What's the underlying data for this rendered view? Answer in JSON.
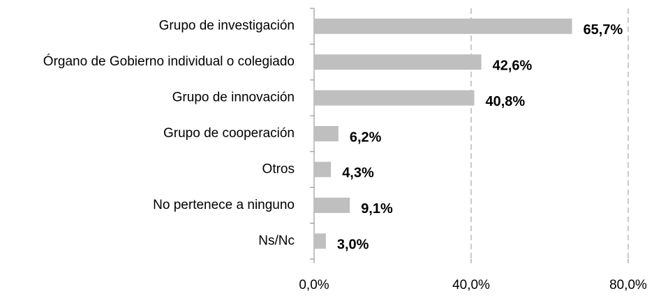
{
  "chart_data": {
    "type": "bar",
    "orientation": "horizontal",
    "categories": [
      "Grupo de investigación",
      "Órgano de Gobierno individual o colegiado",
      "Grupo de innovación",
      "Grupo de cooperación",
      "Otros",
      "No pertenece a ninguno",
      "Ns/Nc"
    ],
    "values": [
      65.7,
      42.6,
      40.8,
      6.2,
      4.3,
      9.1,
      3.0
    ],
    "value_labels": [
      "65,7%",
      "42,6%",
      "40,8%",
      "6,2%",
      "4,3%",
      "9,1%",
      "3,0%"
    ],
    "color": "#bfbfbf",
    "xlim": [
      0,
      80
    ],
    "xticks": [
      {
        "value": 0,
        "label": "0,0%"
      },
      {
        "value": 40,
        "label": "40,0%"
      },
      {
        "value": 80,
        "label": "80,0%"
      }
    ],
    "grid": true
  }
}
